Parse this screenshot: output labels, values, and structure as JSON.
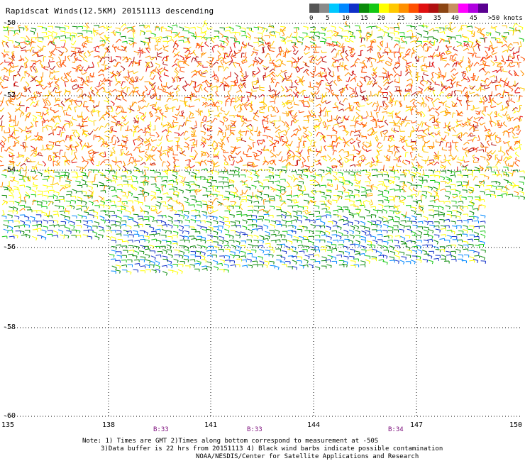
{
  "title": "Rapidscat Winds(12.5KM) 20151113 descending",
  "scale": {
    "colors": [
      "#555555",
      "#8a8a8a",
      "#00c8ff",
      "#0088ff",
      "#1030c8",
      "#0a8a0a",
      "#14c814",
      "#ffff00",
      "#ffc800",
      "#ff9000",
      "#ff5000",
      "#e01010",
      "#b01010",
      "#8b4513",
      "#c89060",
      "#ff00ff",
      "#b000e0",
      "#5a0090"
    ],
    "labels": [
      "0",
      "5",
      "10",
      "15",
      "20",
      "25",
      "30",
      "35",
      "40",
      "45",
      ">50 knots"
    ]
  },
  "axes": {
    "y_labels": [
      "-50",
      "-52",
      "-54",
      "-56",
      "-58",
      "-60"
    ],
    "x_labels": [
      "135",
      "138",
      "141",
      "144",
      "147",
      "150"
    ]
  },
  "times": [
    "B:33",
    "B:33",
    "B:34"
  ],
  "notes": [
    "Note: 1) Times are GMT 2)Times along bottom correspond to measurement at -50S",
    "3)Data buffer is 22 hrs from 20151113 4) Black wind barbs indicate possible contamination",
    "NOAA/NESDIS/Center for Satellite Applications and Research"
  ]
}
